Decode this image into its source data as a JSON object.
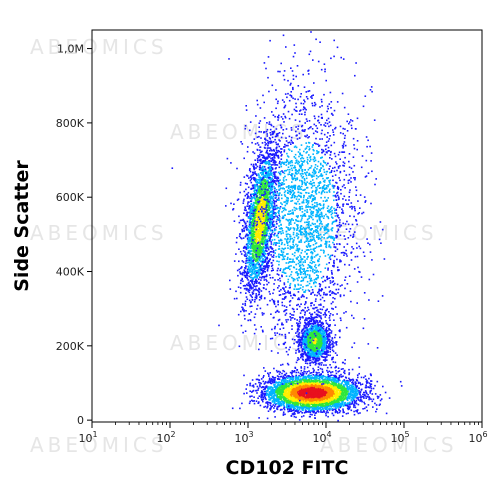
{
  "chart_data": {
    "type": "scatter",
    "subtype": "flow-cytometry-density-dot-plot",
    "xlabel": "CD102 FITC",
    "ylabel": "Side Scatter",
    "x_scale": "log",
    "y_scale": "linear",
    "xlim": [
      10,
      1000000
    ],
    "ylim": [
      -5000,
      1050000
    ],
    "x_ticks": [
      {
        "value": 10,
        "base": "10",
        "exp": "1"
      },
      {
        "value": 100,
        "base": "10",
        "exp": "2"
      },
      {
        "value": 1000,
        "base": "10",
        "exp": "3"
      },
      {
        "value": 10000,
        "base": "10",
        "exp": "4"
      },
      {
        "value": 100000,
        "base": "10",
        "exp": "5"
      },
      {
        "value": 1000000,
        "base": "10",
        "exp": "6"
      }
    ],
    "y_ticks": [
      {
        "value": 0,
        "label": "0"
      },
      {
        "value": 200000,
        "label": "200K"
      },
      {
        "value": 400000,
        "label": "400K"
      },
      {
        "value": 600000,
        "label": "600K"
      },
      {
        "value": 800000,
        "label": "800K"
      },
      {
        "value": 1000000,
        "label": "1,0M"
      }
    ],
    "grid": false,
    "legend": "none",
    "colormap": [
      "#1a1aff",
      "#00b4ff",
      "#2ee63c",
      "#ffee00",
      "#ff8800",
      "#e8101e"
    ],
    "populations": [
      {
        "center_x": 1400,
        "center_y": 540000,
        "spread": "elongated diagonal",
        "approx_x_range": [
          700,
          3000
        ],
        "approx_y_range": [
          330000,
          920000
        ],
        "peak_density": "medium"
      },
      {
        "center_x": 7000,
        "center_y": 215000,
        "spread": "compact",
        "approx_x_range": [
          3000,
          15000
        ],
        "approx_y_range": [
          150000,
          290000
        ],
        "peak_density": "medium"
      },
      {
        "center_x": 6500,
        "center_y": 75000,
        "spread": "broad horizontal",
        "approx_x_range": [
          800,
          50000
        ],
        "approx_y_range": [
          20000,
          130000
        ],
        "peak_density": "high"
      },
      {
        "center_x": 5000,
        "center_y": 550000,
        "spread": "diffuse cloud",
        "approx_x_range": [
          1500,
          40000
        ],
        "approx_y_range": [
          300000,
          1000000
        ],
        "peak_density": "low"
      }
    ],
    "watermark": "ABEOMICS"
  }
}
